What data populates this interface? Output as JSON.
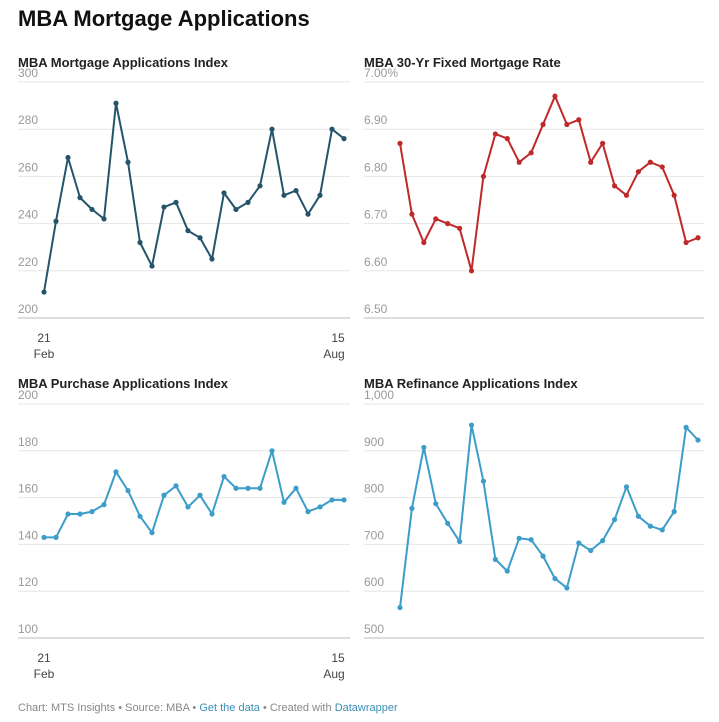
{
  "title": "MBA Mortgage Applications",
  "footer": {
    "chart_by": "Chart: MTS Insights",
    "separator": " • ",
    "source": "Source: MBA",
    "get_data": "Get the data",
    "created": "Created with",
    "tool": "Datawrapper"
  },
  "x_labels": {
    "start_day": "21",
    "start_month": "Feb",
    "end_day": "15",
    "end_month": "Aug"
  },
  "chart_data": [
    {
      "type": "line",
      "title": "MBA Mortgage Applications Index",
      "color": "#24546a",
      "ylim": [
        200,
        300
      ],
      "yticks": [
        200,
        220,
        240,
        260,
        280,
        300
      ],
      "ytick_labels": [
        "200",
        "220",
        "240",
        "260",
        "280",
        "300"
      ],
      "x_start": "21 Feb",
      "x_end": "15 Aug",
      "values": [
        211,
        241,
        268,
        251,
        246,
        242,
        291,
        266,
        232,
        222,
        247,
        249,
        237,
        234,
        225,
        253,
        246,
        249,
        256,
        280,
        252,
        254,
        244,
        252,
        280,
        276
      ]
    },
    {
      "type": "line",
      "title": "MBA 30-Yr Fixed Mortgage Rate",
      "color": "#c0292a",
      "ylim": [
        6.5,
        7.0
      ],
      "yticks": [
        6.5,
        6.6,
        6.7,
        6.8,
        6.9,
        7.0
      ],
      "ytick_labels": [
        "6.50",
        "6.60",
        "6.70",
        "6.80",
        "6.90",
        "7.00%"
      ],
      "x_start": "21 Feb",
      "x_end": "15 Aug",
      "values": [
        6.87,
        6.72,
        6.66,
        6.71,
        6.7,
        6.69,
        6.6,
        6.8,
        6.89,
        6.88,
        6.83,
        6.85,
        6.91,
        6.97,
        6.91,
        6.92,
        6.83,
        6.87,
        6.78,
        6.76,
        6.81,
        6.83,
        6.82,
        6.76,
        6.66,
        6.67
      ]
    },
    {
      "type": "line",
      "title": "MBA Purchase Applications Index",
      "color": "#3d9dc9",
      "ylim": [
        100,
        200
      ],
      "yticks": [
        100,
        120,
        140,
        160,
        180,
        200
      ],
      "ytick_labels": [
        "100",
        "120",
        "140",
        "160",
        "180",
        "200"
      ],
      "x_start": "21 Feb",
      "x_end": "15 Aug",
      "values": [
        143,
        143,
        153,
        153,
        154,
        157,
        171,
        163,
        152,
        145,
        161,
        165,
        156,
        161,
        153,
        169,
        164,
        164,
        164,
        180,
        158,
        164,
        154,
        156,
        159,
        159
      ]
    },
    {
      "type": "line",
      "title": "MBA Refinance Applications Index",
      "color": "#3d9dc9",
      "ylim": [
        500,
        1000
      ],
      "yticks": [
        500,
        600,
        700,
        800,
        900,
        1000
      ],
      "ytick_labels": [
        "500",
        "600",
        "700",
        "800",
        "900",
        "1,000"
      ],
      "x_start": "21 Feb",
      "x_end": "15 Aug",
      "values": [
        565,
        777,
        907,
        787,
        745,
        706,
        955,
        835,
        668,
        643,
        713,
        710,
        675,
        627,
        607,
        703,
        687,
        708,
        753,
        823,
        760,
        739,
        731,
        770,
        950,
        923
      ]
    }
  ]
}
